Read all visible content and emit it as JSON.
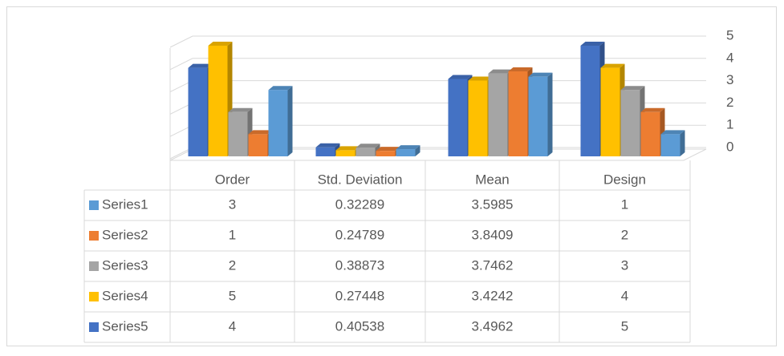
{
  "chart_data": {
    "type": "bar3d",
    "categories": [
      "Order",
      "Std. Deviation",
      "Mean",
      "Design"
    ],
    "series": [
      {
        "name": "Series1",
        "color": "#5b9bd5",
        "values": [
          3,
          0.32289,
          3.5985,
          1
        ]
      },
      {
        "name": "Series2",
        "color": "#ed7d31",
        "values": [
          1,
          0.24789,
          3.8409,
          2
        ]
      },
      {
        "name": "Series3",
        "color": "#a5a5a5",
        "values": [
          2,
          0.38873,
          3.7462,
          3
        ]
      },
      {
        "name": "Series4",
        "color": "#ffc000",
        "values": [
          5,
          0.27448,
          3.4242,
          4
        ]
      },
      {
        "name": "Series5",
        "color": "#4472c4",
        "values": [
          4,
          0.40538,
          3.4962,
          5
        ]
      }
    ],
    "ylim": [
      0,
      5
    ],
    "yticks": [
      0,
      1,
      2,
      3,
      4,
      5
    ],
    "grid": true,
    "data_table": true
  }
}
